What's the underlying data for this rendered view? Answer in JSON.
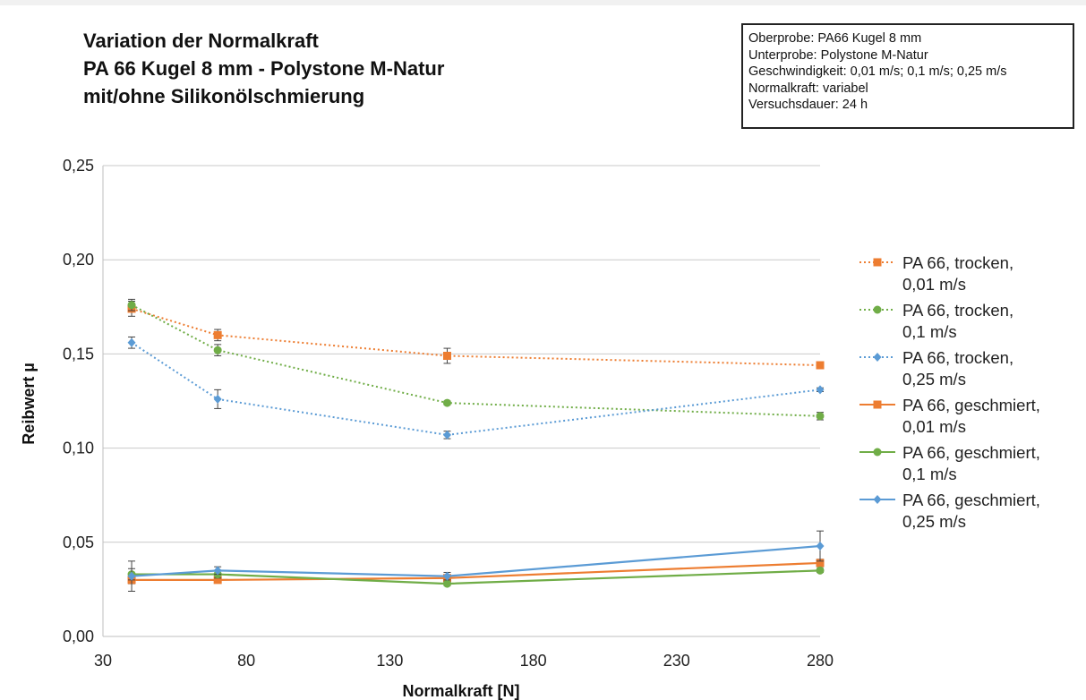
{
  "title_lines": [
    "Variation der Normalkraft",
    "PA 66 Kugel 8 mm - Polystone M-Natur",
    "mit/ohne Silikonölschmierung"
  ],
  "info_box": [
    "Oberprobe: PA66  Kugel 8 mm",
    "Unterprobe: Polystone M-Natur",
    "Geschwindigkeit:  0,01 m/s; 0,1 m/s; 0,25 m/s",
    "Normalkraft: variabel",
    "Versuchsdauer: 24 h"
  ],
  "chart_data": {
    "type": "line",
    "title": "Variation der Normalkraft",
    "xlabel": "Normalkraft [N]",
    "ylabel": "Reibwert µ",
    "xlim": [
      30,
      280
    ],
    "ylim": [
      0,
      0.25
    ],
    "x_ticks": [
      30,
      80,
      130,
      180,
      230,
      280
    ],
    "x_tick_labels": [
      "30",
      "80",
      "130",
      "180",
      "230",
      "280"
    ],
    "y_ticks": [
      0,
      0.05,
      0.1,
      0.15,
      0.2,
      0.25
    ],
    "y_tick_labels": [
      "0,00",
      "0,05",
      "0,10",
      "0,15",
      "0,20",
      "0,25"
    ],
    "grid": "horizontal",
    "legend_position": "right",
    "series": [
      {
        "name": "PA 66, trocken, 0,01 m/s",
        "legend_lines": [
          "PA 66, trocken,",
          "0,01 m/s"
        ],
        "color": "#ED7D31",
        "style": "dotted",
        "marker": "square",
        "x": [
          40,
          70,
          150,
          280
        ],
        "y": [
          0.174,
          0.16,
          0.149,
          0.144
        ],
        "err": [
          0.004,
          0.003,
          0.004,
          0.001
        ]
      },
      {
        "name": "PA 66, trocken, 0,1 m/s",
        "legend_lines": [
          "PA 66, trocken,",
          "0,1 m/s"
        ],
        "color": "#70AD47",
        "style": "dotted",
        "marker": "circle",
        "x": [
          40,
          70,
          150,
          280
        ],
        "y": [
          0.176,
          0.152,
          0.124,
          0.117
        ],
        "err": [
          0.003,
          0.003,
          0.001,
          0.002
        ]
      },
      {
        "name": "PA 66, trocken, 0,25 m/s",
        "legend_lines": [
          "PA 66, trocken,",
          "0,25 m/s"
        ],
        "color": "#5B9BD5",
        "style": "dotted",
        "marker": "diamond",
        "x": [
          40,
          70,
          150,
          280
        ],
        "y": [
          0.156,
          0.126,
          0.107,
          0.131
        ],
        "err": [
          0.003,
          0.005,
          0.002,
          0.001
        ]
      },
      {
        "name": "PA 66, geschmiert, 0,01 m/s",
        "legend_lines": [
          "PA 66, geschmiert,",
          "0,01 m/s"
        ],
        "color": "#ED7D31",
        "style": "solid",
        "marker": "square",
        "x": [
          40,
          70,
          150,
          280
        ],
        "y": [
          0.03,
          0.03,
          0.031,
          0.039
        ],
        "err": [
          0.002,
          0.001,
          0.001,
          0.002
        ]
      },
      {
        "name": "PA 66, geschmiert, 0,1 m/s",
        "legend_lines": [
          "PA 66, geschmiert,",
          "0,1 m/s"
        ],
        "color": "#70AD47",
        "style": "solid",
        "marker": "circle",
        "x": [
          40,
          70,
          150,
          280
        ],
        "y": [
          0.033,
          0.033,
          0.028,
          0.035
        ],
        "err": [
          0.003,
          0.002,
          0.001,
          0.001
        ]
      },
      {
        "name": "PA 66, geschmiert, 0,25 m/s",
        "legend_lines": [
          "PA 66, geschmiert,",
          "0,25 m/s"
        ],
        "color": "#5B9BD5",
        "style": "solid",
        "marker": "diamond",
        "x": [
          40,
          70,
          150,
          280
        ],
        "y": [
          0.032,
          0.035,
          0.032,
          0.048
        ],
        "err": [
          0.008,
          0.002,
          0.002,
          0.008
        ]
      }
    ]
  }
}
